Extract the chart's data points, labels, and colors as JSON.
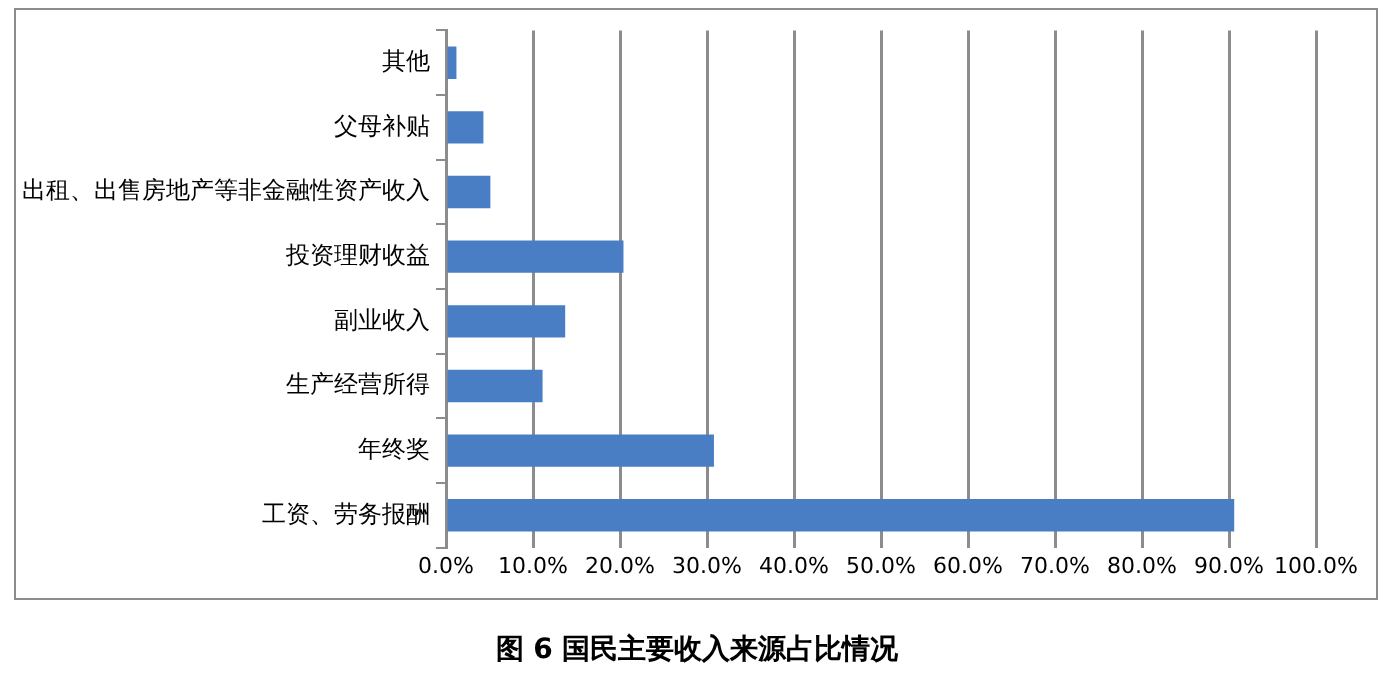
{
  "chart_data": {
    "type": "bar",
    "orientation": "horizontal",
    "title": "图 6 国民主要收入来源占比情况",
    "categories": [
      "其他",
      "父母补贴",
      "出租、出售房地产等非金融性资产收入",
      "投资理财收益",
      "副业收入",
      "生产经营所得",
      "年终奖",
      "工资、劳务报酬"
    ],
    "values": [
      1.2,
      4.3,
      5.1,
      20.4,
      13.7,
      11.1,
      30.8,
      90.6
    ],
    "color": "#4a7ec4",
    "xlim": [
      0,
      100
    ],
    "xticks": [
      {
        "value": 0,
        "label": "0.0%"
      },
      {
        "value": 10,
        "label": "10.0%"
      },
      {
        "value": 20,
        "label": "20.0%"
      },
      {
        "value": 30,
        "label": "30.0%"
      },
      {
        "value": 40,
        "label": "40.0%"
      },
      {
        "value": 50,
        "label": "50.0%"
      },
      {
        "value": 60,
        "label": "60.0%"
      },
      {
        "value": 70,
        "label": "70.0%"
      },
      {
        "value": 80,
        "label": "80.0%"
      },
      {
        "value": 90,
        "label": "90.0%"
      },
      {
        "value": 100,
        "label": "100.0%"
      }
    ],
    "grid": "x",
    "legend": false
  }
}
